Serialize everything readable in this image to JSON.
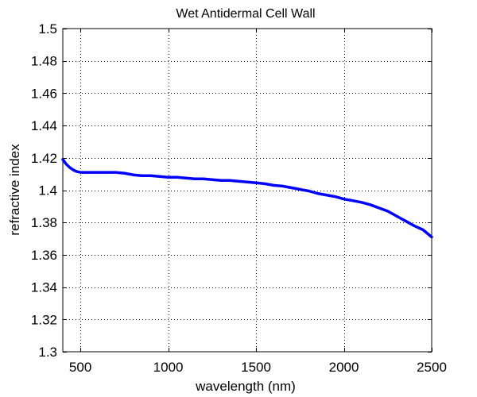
{
  "chart_data": {
    "type": "line",
    "title": "Wet Antidermal Cell Wall",
    "xlabel": "wavelength (nm)",
    "ylabel": "refractive index",
    "xlim": [
      400,
      2500
    ],
    "ylim": [
      1.3,
      1.5
    ],
    "xticks": [
      500,
      1000,
      1500,
      2000,
      2500
    ],
    "yticks": [
      1.3,
      1.32,
      1.34,
      1.36,
      1.38,
      1.4,
      1.42,
      1.44,
      1.46,
      1.48,
      1.5
    ],
    "xtick_labels": [
      "500",
      "1000",
      "1500",
      "2000",
      "2500"
    ],
    "ytick_labels": [
      "1.3",
      "1.32",
      "1.34",
      "1.36",
      "1.38",
      "1.4",
      "1.42",
      "1.44",
      "1.46",
      "1.48",
      "1.5"
    ],
    "grid": true,
    "series": [
      {
        "color": "#0000ff",
        "x": [
          400,
          420,
          440,
          460,
          480,
          500,
          550,
          600,
          650,
          700,
          750,
          800,
          850,
          900,
          950,
          1000,
          1050,
          1100,
          1150,
          1200,
          1250,
          1300,
          1350,
          1400,
          1450,
          1500,
          1550,
          1600,
          1650,
          1700,
          1750,
          1800,
          1850,
          1900,
          1950,
          2000,
          2050,
          2100,
          2150,
          2200,
          2250,
          2300,
          2350,
          2400,
          2450,
          2500
        ],
        "y": [
          1.419,
          1.416,
          1.414,
          1.4125,
          1.4115,
          1.411,
          1.411,
          1.411,
          1.411,
          1.411,
          1.4105,
          1.4095,
          1.409,
          1.409,
          1.4085,
          1.408,
          1.408,
          1.4075,
          1.407,
          1.407,
          1.4065,
          1.406,
          1.406,
          1.4055,
          1.405,
          1.4045,
          1.404,
          1.403,
          1.4025,
          1.4015,
          1.4005,
          1.3995,
          1.398,
          1.397,
          1.396,
          1.3945,
          1.3935,
          1.3925,
          1.391,
          1.389,
          1.387,
          1.384,
          1.381,
          1.378,
          1.3755,
          1.371
        ]
      }
    ]
  }
}
